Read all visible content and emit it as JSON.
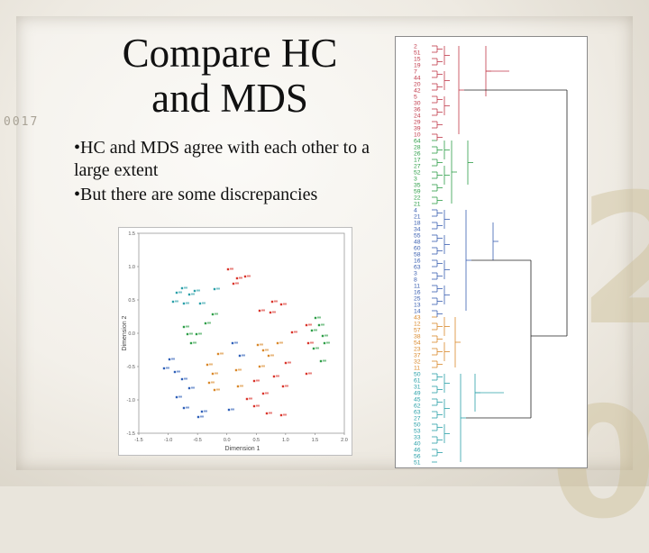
{
  "slide": {
    "title_line1": "Compare HC",
    "title_line2": "and MDS",
    "bullets": [
      "•HC and MDS agree with each other to a large extent",
      "•But there are some discrepancies"
    ],
    "deco_text": "0017",
    "deco_big_1": "2",
    "deco_big_2": "0"
  },
  "mds_plot": {
    "xlabel": "Dimension 1",
    "ylabel": "Dimension 2",
    "xticks": [
      "-1.5",
      "-1.0",
      "-0.5",
      "0.0",
      "0.5",
      "1.0",
      "1.5",
      "2.0"
    ],
    "yticks": [
      "1.5",
      "1.0",
      "0.5",
      "0.0",
      "-0.5",
      "-1.0",
      "-1.5"
    ],
    "colors": {
      "red": "#d9342b",
      "green": "#2e9e48",
      "blue": "#2e5fb8",
      "orange": "#d9882a",
      "teal": "#2aa0a8"
    }
  },
  "dendrogram": {
    "labels": [
      "2",
      "51",
      "15",
      "19",
      "7",
      "44",
      "20",
      "42",
      "5",
      "30",
      "36",
      "24",
      "29",
      "39",
      "10",
      "64",
      "28",
      "26",
      "17",
      "27",
      "52",
      "3",
      "35",
      "59",
      "22",
      "21",
      "4",
      "21",
      "18",
      "34",
      "55",
      "48",
      "60",
      "58",
      "16",
      "63",
      "3",
      "8",
      "11",
      "16",
      "25",
      "13",
      "14",
      "43",
      "12",
      "57",
      "38",
      "54",
      "23",
      "37",
      "32",
      "11",
      "50",
      "61",
      "31",
      "49",
      "45",
      "62",
      "63",
      "27",
      "50",
      "53",
      "33",
      "40",
      "46",
      "56",
      "51"
    ],
    "colors": {
      "red": "#c0394a",
      "green": "#2e9e48",
      "blue": "#3a5fb0",
      "orange": "#d9882a",
      "teal": "#2aa0a8"
    }
  }
}
